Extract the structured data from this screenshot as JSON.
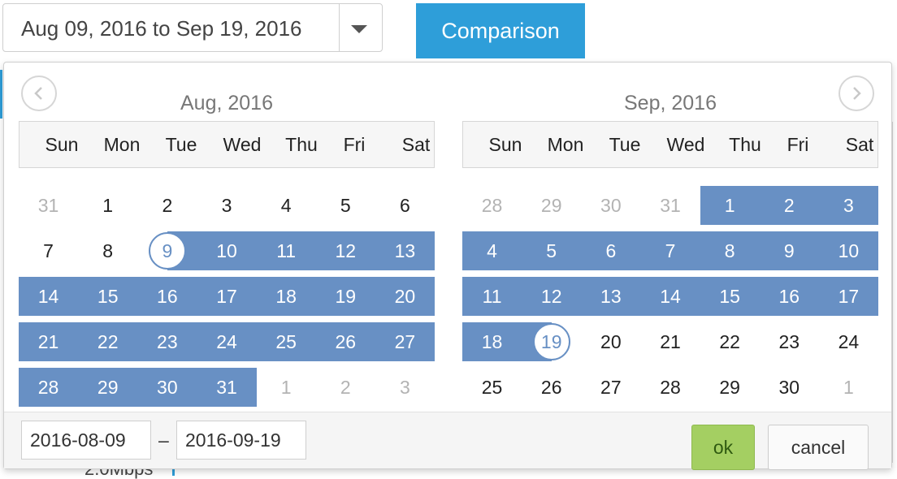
{
  "range_select": {
    "label": "Aug 09, 2016 to Sep 19, 2016",
    "caret_icon": "caret-down-icon"
  },
  "comparison_label": "Comparison",
  "background_text": "2.0Mbps",
  "picker": {
    "prev_icon": "chevron-left-icon",
    "next_icon": "chevron-right-icon",
    "weekdays": [
      "Sun",
      "Mon",
      "Tue",
      "Wed",
      "Thu",
      "Fri",
      "Sat"
    ],
    "months": [
      {
        "title": "Aug, 2016",
        "weeks": [
          [
            "31",
            "1",
            "2",
            "3",
            "4",
            "5",
            "6"
          ],
          [
            "7",
            "8",
            "9",
            "10",
            "11",
            "12",
            "13"
          ],
          [
            "14",
            "15",
            "16",
            "17",
            "18",
            "19",
            "20"
          ],
          [
            "21",
            "22",
            "23",
            "24",
            "25",
            "26",
            "27"
          ],
          [
            "28",
            "29",
            "30",
            "31",
            "1",
            "2",
            "3"
          ]
        ],
        "other_month": [
          [
            0,
            0
          ],
          [
            4,
            4
          ],
          [
            4,
            5
          ],
          [
            4,
            6
          ]
        ],
        "selected_start": [
          1,
          2
        ],
        "selected_end": null,
        "range_start": [
          1,
          2
        ],
        "range_end": [
          4,
          3
        ]
      },
      {
        "title": "Sep, 2016",
        "weeks": [
          [
            "28",
            "29",
            "30",
            "31",
            "1",
            "2",
            "3"
          ],
          [
            "4",
            "5",
            "6",
            "7",
            "8",
            "9",
            "10"
          ],
          [
            "11",
            "12",
            "13",
            "14",
            "15",
            "16",
            "17"
          ],
          [
            "18",
            "19",
            "20",
            "21",
            "22",
            "23",
            "24"
          ],
          [
            "25",
            "26",
            "27",
            "28",
            "29",
            "30",
            "1"
          ]
        ],
        "other_month": [
          [
            0,
            0
          ],
          [
            0,
            1
          ],
          [
            0,
            2
          ],
          [
            0,
            3
          ],
          [
            4,
            6
          ]
        ],
        "selected_start": null,
        "selected_end": [
          3,
          1
        ],
        "range_start": [
          0,
          4
        ],
        "range_end": [
          3,
          1
        ]
      }
    ],
    "start_input": "2016-08-09",
    "separator": "–",
    "end_input": "2016-09-19",
    "ok_label": "ok",
    "cancel_label": "cancel"
  },
  "colors": {
    "accent": "#2e9ed9",
    "range": "#6890c4",
    "ok": "#a4cf62"
  }
}
